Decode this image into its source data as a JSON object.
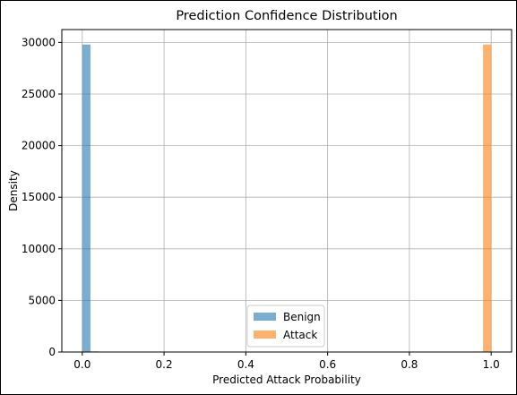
{
  "chart_data": {
    "type": "bar",
    "title": "Prediction Confidence Distribution",
    "xlabel": "Predicted Attack Probability",
    "ylabel": "Density",
    "xlim": [
      -0.05,
      1.05
    ],
    "ylim": [
      0,
      31250
    ],
    "xticks": [
      {
        "value": 0.0,
        "label": "0.0"
      },
      {
        "value": 0.2,
        "label": "0.2"
      },
      {
        "value": 0.4,
        "label": "0.4"
      },
      {
        "value": 0.6,
        "label": "0.6"
      },
      {
        "value": 0.8,
        "label": "0.8"
      },
      {
        "value": 1.0,
        "label": "1.0"
      }
    ],
    "yticks": [
      {
        "value": 0,
        "label": "0"
      },
      {
        "value": 5000,
        "label": "5000"
      },
      {
        "value": 10000,
        "label": "10000"
      },
      {
        "value": 15000,
        "label": "15000"
      },
      {
        "value": 20000,
        "label": "20000"
      },
      {
        "value": 25000,
        "label": "25000"
      },
      {
        "value": 30000,
        "label": "30000"
      }
    ],
    "grid": true,
    "legend_position": "bottom-center",
    "series": [
      {
        "name": "Benign",
        "color": "#1f77b4",
        "opacity": 0.6,
        "bins": [
          {
            "x0": 0.0,
            "x1": 0.02,
            "density": 29800
          },
          {
            "x0": 0.02,
            "x1": 0.04,
            "density": 60
          },
          {
            "x0": 0.04,
            "x1": 0.06,
            "density": 40
          },
          {
            "x0": 0.06,
            "x1": 0.96,
            "density": 0
          },
          {
            "x0": 0.96,
            "x1": 0.98,
            "density": 0
          },
          {
            "x0": 0.98,
            "x1": 1.0,
            "density": 0
          }
        ]
      },
      {
        "name": "Attack",
        "color": "#ff7f0e",
        "opacity": 0.6,
        "bins": [
          {
            "x0": 0.0,
            "x1": 0.02,
            "density": 0
          },
          {
            "x0": 0.94,
            "x1": 0.96,
            "density": 30
          },
          {
            "x0": 0.96,
            "x1": 0.98,
            "density": 50
          },
          {
            "x0": 0.98,
            "x1": 1.0,
            "density": 29800
          }
        ]
      }
    ]
  }
}
